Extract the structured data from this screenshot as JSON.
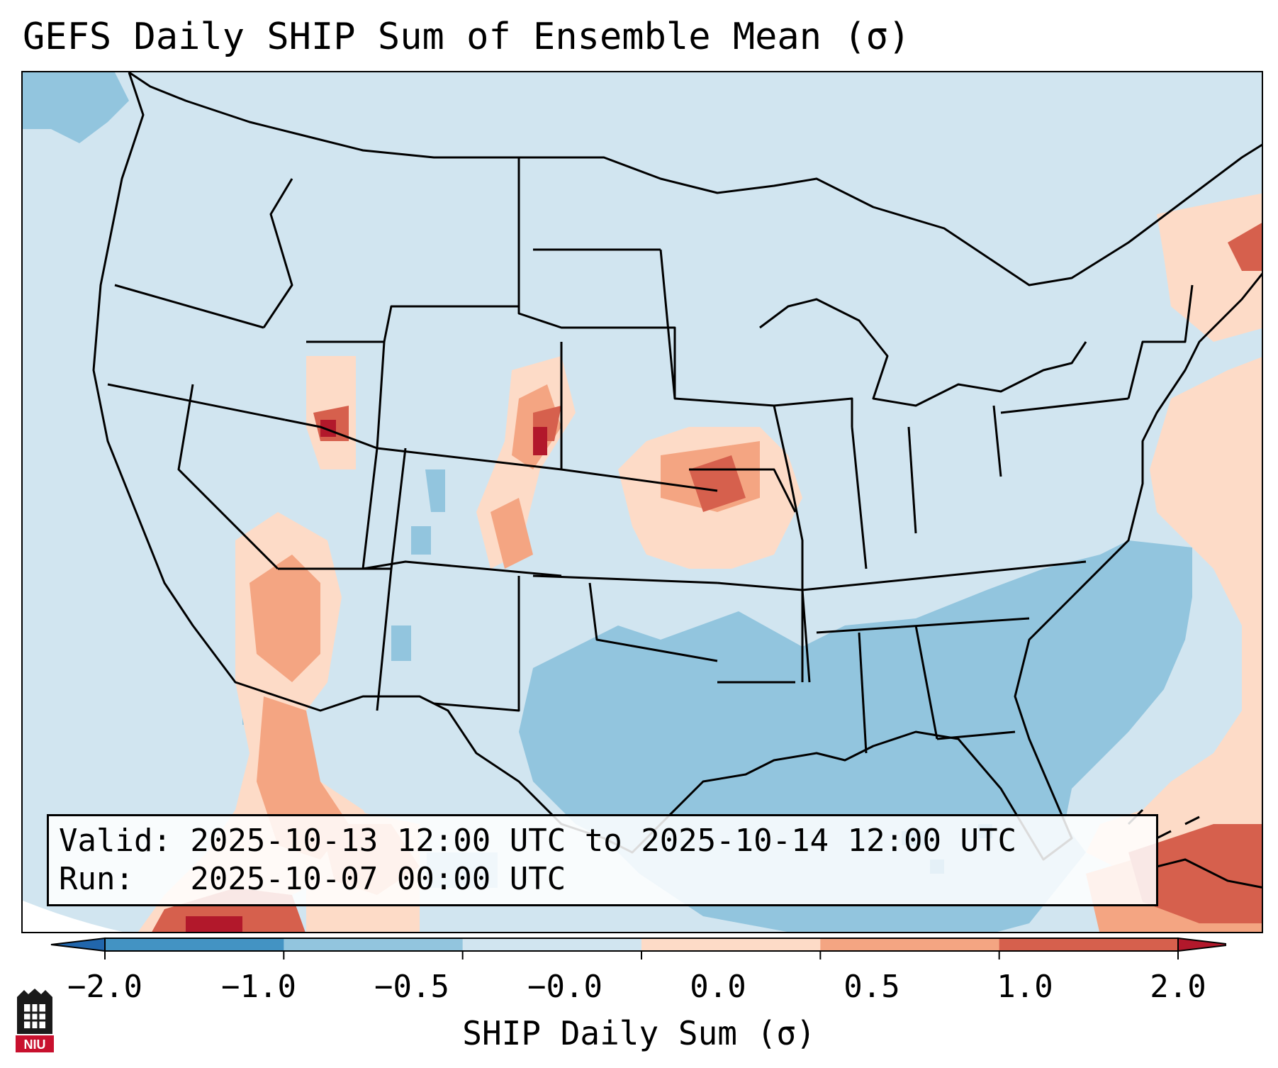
{
  "title": "GEFS Daily SHIP Sum of Ensemble Mean (σ)",
  "info": {
    "valid_line": "Valid: 2025-10-13 12:00 UTC to 2025-10-14 12:00 UTC",
    "run_line": "Run:   2025-10-07 00:00 UTC"
  },
  "colorbar": {
    "label": "SHIP Daily Sum (σ)",
    "ticks": [
      "−2.0",
      "−1.0",
      "−0.5",
      "−0.0",
      "0.0",
      "0.5",
      "1.0",
      "2.0"
    ],
    "colors": [
      "#4393c3",
      "#92c5de",
      "#d1e5f0",
      "#fddbc7",
      "#f4a582",
      "#d6604d"
    ],
    "extend_min_color": "#2166ac",
    "extend_max_color": "#b2182b"
  },
  "map": {
    "region": "Continental United States",
    "field": "SHIP daily sum (σ) of GEFS ensemble mean",
    "background_class": "-0.5 to 0.0"
  },
  "logo": {
    "text": "NIU"
  }
}
